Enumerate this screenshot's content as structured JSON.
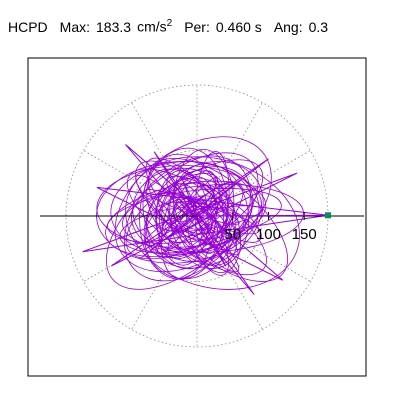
{
  "header": {
    "station": "HCPD",
    "max_label": "Max:",
    "max_value": "183.3",
    "max_unit": "cm/s",
    "max_unit_exp": "2",
    "per_label": "Per:",
    "per_value": "0.460 s",
    "ang_label": "Ang:",
    "ang_value": "0.3"
  },
  "chart_data": {
    "type": "line",
    "title": "",
    "xlabel": "",
    "ylabel": "",
    "radial_ticks": [
      50,
      100,
      150
    ],
    "tick_labels": [
      "50",
      "100",
      "150"
    ],
    "max_radius": 183.3,
    "peak_angle_deg": 0.3,
    "grid": "dotted polar circles and radial spokes",
    "trace_color": "#9400d3",
    "axis_color": "#000000",
    "grid_color": "#888888",
    "marker_color": "#0b8a5a",
    "series": [
      {
        "description": "orbit trace in data units (x, y)",
        "x": [
          0,
          30,
          -40,
          60,
          -80,
          100,
          -120,
          140,
          -160,
          183.3,
          -140,
          120,
          -100,
          80,
          -60,
          40,
          -20,
          10,
          0
        ],
        "y": [
          0,
          20,
          -30,
          50,
          -60,
          80,
          -70,
          60,
          -50,
          1,
          40,
          -90,
          100,
          -110,
          90,
          -70,
          50,
          -30,
          0
        ]
      }
    ]
  }
}
